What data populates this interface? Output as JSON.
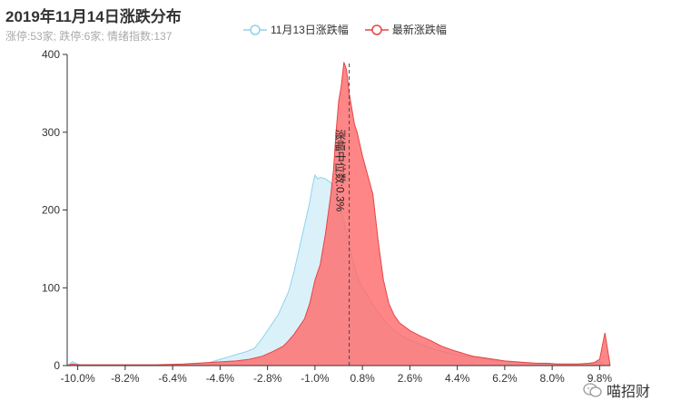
{
  "chart_data": {
    "type": "area",
    "title": "2019年11月14日涨跌分布",
    "subtitle": "涨停:53家; 跌停:6家; 情绪指数:137",
    "xlabel": "",
    "ylabel": "",
    "xlim": [
      -10.4,
      10.2
    ],
    "ylim": [
      0,
      400
    ],
    "x_ticks": [
      -10.0,
      -8.2,
      -6.4,
      -4.6,
      -2.8,
      -1.0,
      0.8,
      2.6,
      4.4,
      6.2,
      8.0,
      9.8
    ],
    "x_tick_labels": [
      "-10.0%",
      "-8.2%",
      "-6.4%",
      "-4.6%",
      "-2.8%",
      "-1.0%",
      "0.8%",
      "2.6%",
      "4.4%",
      "6.2%",
      "8.0%",
      "9.8%"
    ],
    "y_ticks": [
      0,
      100,
      200,
      300,
      400
    ],
    "y_tick_labels": [
      "0",
      "100",
      "200",
      "300",
      "400"
    ],
    "grid": false,
    "legend": "top-center",
    "markline": {
      "x": 0.3,
      "label": "涨幅中位数:0.3%"
    },
    "series": [
      {
        "name": "11月13日涨跌幅",
        "color": "#8dd3ec",
        "fill": "#d5eef9",
        "x": [
          -10.4,
          -10.2,
          -10.0,
          -9.8,
          -9.0,
          -8.0,
          -7.0,
          -6.0,
          -5.5,
          -5.0,
          -4.6,
          -4.2,
          -3.9,
          -3.6,
          -3.3,
          -3.0,
          -2.8,
          -2.6,
          -2.4,
          -2.2,
          -2.0,
          -1.8,
          -1.6,
          -1.4,
          -1.2,
          -1.1,
          -1.0,
          -0.9,
          -0.8,
          -0.6,
          -0.4,
          -0.2,
          0.0,
          0.2,
          0.4,
          0.6,
          0.8,
          1.0,
          1.2,
          1.4,
          1.6,
          1.8,
          2.0,
          2.4,
          2.8,
          3.2,
          3.6,
          4.0,
          4.4,
          4.8,
          5.2,
          5.6,
          6.0,
          6.4,
          6.8,
          7.2,
          7.6,
          8.0,
          8.4,
          8.8,
          9.2,
          9.6,
          9.8,
          10.0,
          10.2
        ],
        "values": [
          0,
          5,
          2,
          0,
          0,
          0,
          0,
          1,
          2,
          4,
          8,
          12,
          15,
          18,
          22,
          35,
          45,
          55,
          65,
          80,
          95,
          120,
          150,
          180,
          210,
          230,
          245,
          240,
          242,
          240,
          235,
          220,
          200,
          170,
          140,
          115,
          100,
          90,
          78,
          68,
          60,
          52,
          45,
          36,
          30,
          25,
          20,
          17,
          14,
          12,
          10,
          8,
          6,
          5,
          4,
          3,
          2,
          2,
          2,
          2,
          2,
          3,
          5,
          0,
          0
        ]
      },
      {
        "name": "最新涨跌幅",
        "color": "#e54545",
        "fill": "#ff6b6b",
        "x": [
          -10.4,
          -10.2,
          -10.0,
          -9.0,
          -8.0,
          -7.0,
          -6.0,
          -5.0,
          -4.0,
          -3.5,
          -3.0,
          -2.6,
          -2.2,
          -2.0,
          -1.8,
          -1.6,
          -1.4,
          -1.2,
          -1.0,
          -0.8,
          -0.6,
          -0.4,
          -0.3,
          -0.2,
          -0.1,
          0.0,
          0.1,
          0.2,
          0.3,
          0.4,
          0.5,
          0.6,
          0.8,
          1.0,
          1.2,
          1.4,
          1.6,
          1.8,
          2.0,
          2.2,
          2.6,
          3.0,
          3.4,
          3.8,
          4.2,
          4.6,
          5.0,
          5.4,
          5.8,
          6.2,
          6.6,
          7.0,
          7.4,
          7.8,
          8.2,
          8.6,
          9.0,
          9.4,
          9.6,
          9.8,
          9.9,
          10.0,
          10.2
        ],
        "values": [
          0,
          2,
          1,
          1,
          1,
          1,
          2,
          4,
          6,
          8,
          12,
          18,
          25,
          32,
          40,
          50,
          60,
          80,
          110,
          130,
          170,
          220,
          250,
          300,
          340,
          360,
          390,
          380,
          350,
          330,
          310,
          300,
          270,
          245,
          220,
          160,
          110,
          80,
          65,
          55,
          45,
          38,
          32,
          25,
          20,
          16,
          12,
          10,
          8,
          6,
          5,
          4,
          3,
          3,
          2,
          2,
          2,
          3,
          4,
          8,
          25,
          42,
          0
        ]
      }
    ]
  },
  "watermark": {
    "text": "喵招财",
    "icon": "wechat-icon"
  }
}
